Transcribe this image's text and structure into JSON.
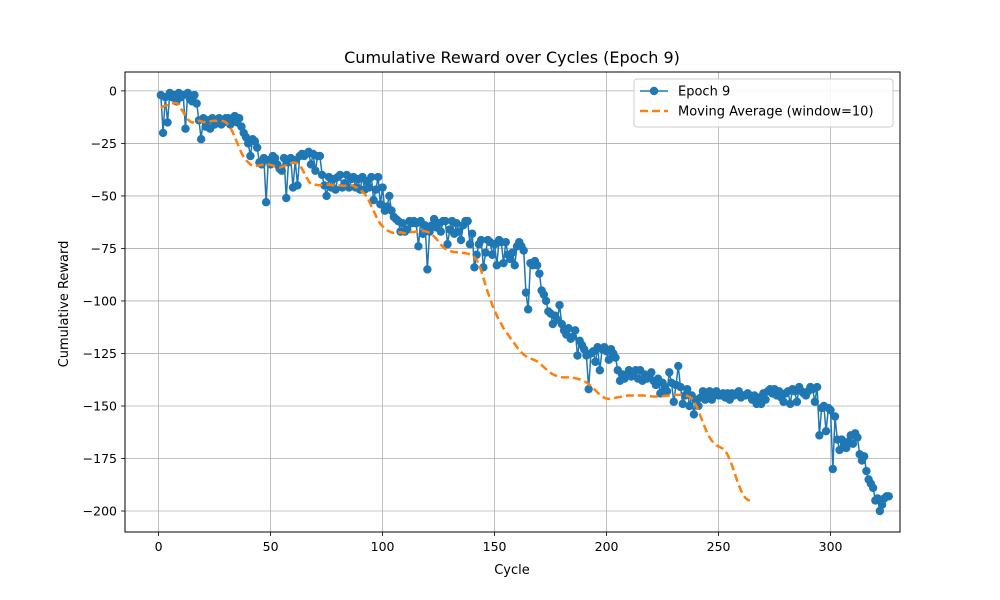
{
  "chart_data": {
    "type": "line",
    "title": "Cumulative Reward over Cycles (Epoch 9)",
    "xlabel": "Cycle",
    "ylabel": "Cumulative Reward",
    "xlim": [
      -15,
      331
    ],
    "ylim": [
      -210,
      9
    ],
    "xticks": [
      0,
      50,
      100,
      150,
      200,
      250,
      300
    ],
    "yticks": [
      0,
      -25,
      -50,
      -75,
      -100,
      -125,
      -150,
      -175,
      -200
    ],
    "grid": true,
    "legend_position": "top-right",
    "colors": {
      "series": "#1f77b4",
      "moving_average": "#ff7f0e"
    },
    "x_start": 1,
    "series": [
      {
        "name": "Epoch 9",
        "style": "line-with-circle-markers",
        "values": [
          -2,
          -20,
          -3,
          -15,
          -1,
          -3,
          -2,
          -5,
          -1,
          -3,
          -2,
          -18,
          -1,
          -4,
          -5,
          -2,
          -6,
          -14,
          -23,
          -13,
          -17,
          -14,
          -18,
          -13,
          -16,
          -15,
          -13,
          -16,
          -15,
          -13,
          -13,
          -16,
          -13,
          -12,
          -15,
          -13,
          -17,
          -20,
          -22,
          -25,
          -31,
          -23,
          -24,
          -27,
          -34,
          -35,
          -32,
          -53,
          -33,
          -35,
          -31,
          -32,
          -35,
          -37,
          -38,
          -32,
          -51,
          -34,
          -32,
          -46,
          -33,
          -45,
          -31,
          -30,
          -31,
          -30,
          -29,
          -35,
          -30,
          -38,
          -31,
          -31,
          -40,
          -45,
          -50,
          -41,
          -46,
          -42,
          -47,
          -41,
          -40,
          -46,
          -44,
          -40,
          -46,
          -42,
          -41,
          -46,
          -42,
          -47,
          -41,
          -47,
          -43,
          -46,
          -41,
          -52,
          -47,
          -41,
          -54,
          -46,
          -57,
          -55,
          -50,
          -57,
          -60,
          -61,
          -62,
          -67,
          -63,
          -67,
          -66,
          -62,
          -63,
          -62,
          -63,
          -74,
          -62,
          -68,
          -64,
          -85,
          -67,
          -64,
          -61,
          -65,
          -63,
          -67,
          -62,
          -62,
          -73,
          -66,
          -62,
          -68,
          -63,
          -67,
          -71,
          -64,
          -62,
          -62,
          -73,
          -68,
          -84,
          -78,
          -73,
          -71,
          -84,
          -77,
          -71,
          -72,
          -78,
          -73,
          -83,
          -71,
          -72,
          -82,
          -72,
          -78,
          -80,
          -77,
          -83,
          -74,
          -72,
          -74,
          -76,
          -96,
          -104,
          -82,
          -83,
          -81,
          -83,
          -87,
          -95,
          -97,
          -100,
          -105,
          -106,
          -111,
          -107,
          -109,
          -102,
          -111,
          -114,
          -116,
          -113,
          -118,
          -117,
          -114,
          -126,
          -119,
          -121,
          -123,
          -126,
          -142,
          -125,
          -124,
          -129,
          -122,
          -133,
          -123,
          -122,
          -124,
          -128,
          -123,
          -125,
          -127,
          -133,
          -138,
          -135,
          -137,
          -135,
          -133,
          -136,
          -134,
          -133,
          -137,
          -133,
          -138,
          -135,
          -137,
          -136,
          -134,
          -138,
          -140,
          -137,
          -144,
          -139,
          -141,
          -143,
          -134,
          -139,
          -148,
          -140,
          -131,
          -141,
          -149,
          -145,
          -142,
          -150,
          -145,
          -154,
          -147,
          -150,
          -146,
          -143,
          -147,
          -144,
          -143,
          -147,
          -145,
          -143,
          -145,
          -145,
          -144,
          -146,
          -144,
          -147,
          -144,
          -145,
          -144,
          -143,
          -146,
          -145,
          -145,
          -144,
          -145,
          -147,
          -145,
          -149,
          -146,
          -149,
          -144,
          -147,
          -143,
          -142,
          -144,
          -142,
          -145,
          -143,
          -146,
          -148,
          -144,
          -143,
          -149,
          -142,
          -143,
          -148,
          -141,
          -143,
          -144,
          -145,
          -143,
          -141,
          -142,
          -148,
          -141,
          -164,
          -151,
          -150,
          -162,
          -151,
          -152,
          -180,
          -155,
          -166,
          -171,
          -166,
          -168,
          -170,
          -167,
          -164,
          -168,
          -163,
          -165,
          -173,
          -176,
          -174,
          -181,
          -185,
          -187,
          -189,
          -195,
          -194,
          -200,
          -197,
          -194,
          -193,
          -193
        ]
      },
      {
        "name": "Moving Average (window=10)",
        "style": "dashed-line",
        "x_start": 1,
        "values": [
          -8,
          -7.5,
          -7,
          -6.8,
          -6.3,
          -6,
          -5.7,
          -5.8,
          -6.5,
          -8.5,
          -10,
          -12,
          -13.5,
          -14.5,
          -15,
          -15,
          -14.7,
          -14.2,
          -14.5,
          -14.8,
          -14.9,
          -14.8,
          -14.5,
          -14.3,
          -14.2,
          -14.3,
          -14.3,
          -14.2,
          -14.4,
          -14.9,
          -16,
          -17.5,
          -19.5,
          -22,
          -24.5,
          -27,
          -29.5,
          -31.5,
          -33,
          -34,
          -35,
          -35.8,
          -35.9,
          -35.6,
          -35.5,
          -35.2,
          -35,
          -35,
          -35,
          -35.2,
          -35.5,
          -36,
          -36.3,
          -36.5,
          -36.2,
          -35.8,
          -35.4,
          -35,
          -34.5,
          -34,
          -34.2,
          -34.5,
          -35.5,
          -37,
          -39,
          -41,
          -43,
          -44.3,
          -44.6,
          -44.7,
          -44.8,
          -44.9,
          -44.8,
          -44.7,
          -44.6,
          -44.7,
          -44.8,
          -44.9,
          -44.8,
          -44.9,
          -45,
          -45.1,
          -45.2,
          -45,
          -44.8,
          -44.9,
          -45.2,
          -45.8,
          -46.3,
          -47.2,
          -48,
          -49,
          -50.5,
          -52.5,
          -54.8,
          -57,
          -59.5,
          -61.5,
          -63.3,
          -64.5,
          -65.5,
          -66.3,
          -66.9,
          -67.4,
          -67.6,
          -67.7,
          -67.5,
          -67.3,
          -67.6,
          -67.8,
          -67.6,
          -67.3,
          -67.2,
          -67.1,
          -67.0,
          -67.0,
          -66.8,
          -66.7,
          -66.8,
          -67.1,
          -67.6,
          -68.3,
          -69.3,
          -70.4,
          -71.8,
          -73.2,
          -74.3,
          -75.2,
          -75.8,
          -76.2,
          -76.5,
          -76.7,
          -76.8,
          -76.9,
          -77,
          -77.1,
          -77.3,
          -77.5,
          -77.8,
          -78.3,
          -79.2,
          -80.5,
          -82.5,
          -85.5,
          -89,
          -92.5,
          -96,
          -99,
          -102,
          -104.5,
          -107,
          -109,
          -111,
          -113,
          -114.5,
          -116,
          -117.5,
          -119,
          -120.5,
          -122,
          -123.5,
          -124.5,
          -125.5,
          -126.3,
          -126.9,
          -127.4,
          -127.8,
          -128.2,
          -128.8,
          -129.6,
          -130.5,
          -131.5,
          -132.5,
          -133.4,
          -134.2,
          -134.9,
          -135.4,
          -135.8,
          -136.1,
          -136.3,
          -136.4,
          -136.4,
          -136.4,
          -136.5,
          -136.6,
          -136.8,
          -137,
          -137.3,
          -137.7,
          -138.2,
          -138.8,
          -139.6,
          -140.5,
          -141.4,
          -142.5,
          -143.6,
          -144.6,
          -145.4,
          -146.1,
          -146.5,
          -146.6,
          -146.5,
          -146.3,
          -146.1,
          -145.9,
          -145.7,
          -145.5,
          -145.3,
          -145.1,
          -145,
          -145,
          -145,
          -145,
          -145,
          -145,
          -145,
          -145.1,
          -145.2,
          -145.3,
          -145.4,
          -145.5,
          -145.5,
          -145.5,
          -145.4,
          -145.3,
          -145.2,
          -145.1,
          -145,
          -144.9,
          -144.8,
          -144.7,
          -144.7,
          -144.7,
          -144.8,
          -145,
          -145.2,
          -145.6,
          -146.4,
          -147.8,
          -149.8,
          -152.2,
          -155,
          -157.8,
          -160.5,
          -163,
          -165,
          -166.6,
          -167.8,
          -168.7,
          -169.3,
          -169.8,
          -170.4,
          -171.5,
          -173.2,
          -175.5,
          -178.3,
          -181.5,
          -184.6,
          -187.6,
          -190.2,
          -192.3,
          -193.8,
          -194.7,
          -195.1
        ]
      }
    ]
  }
}
